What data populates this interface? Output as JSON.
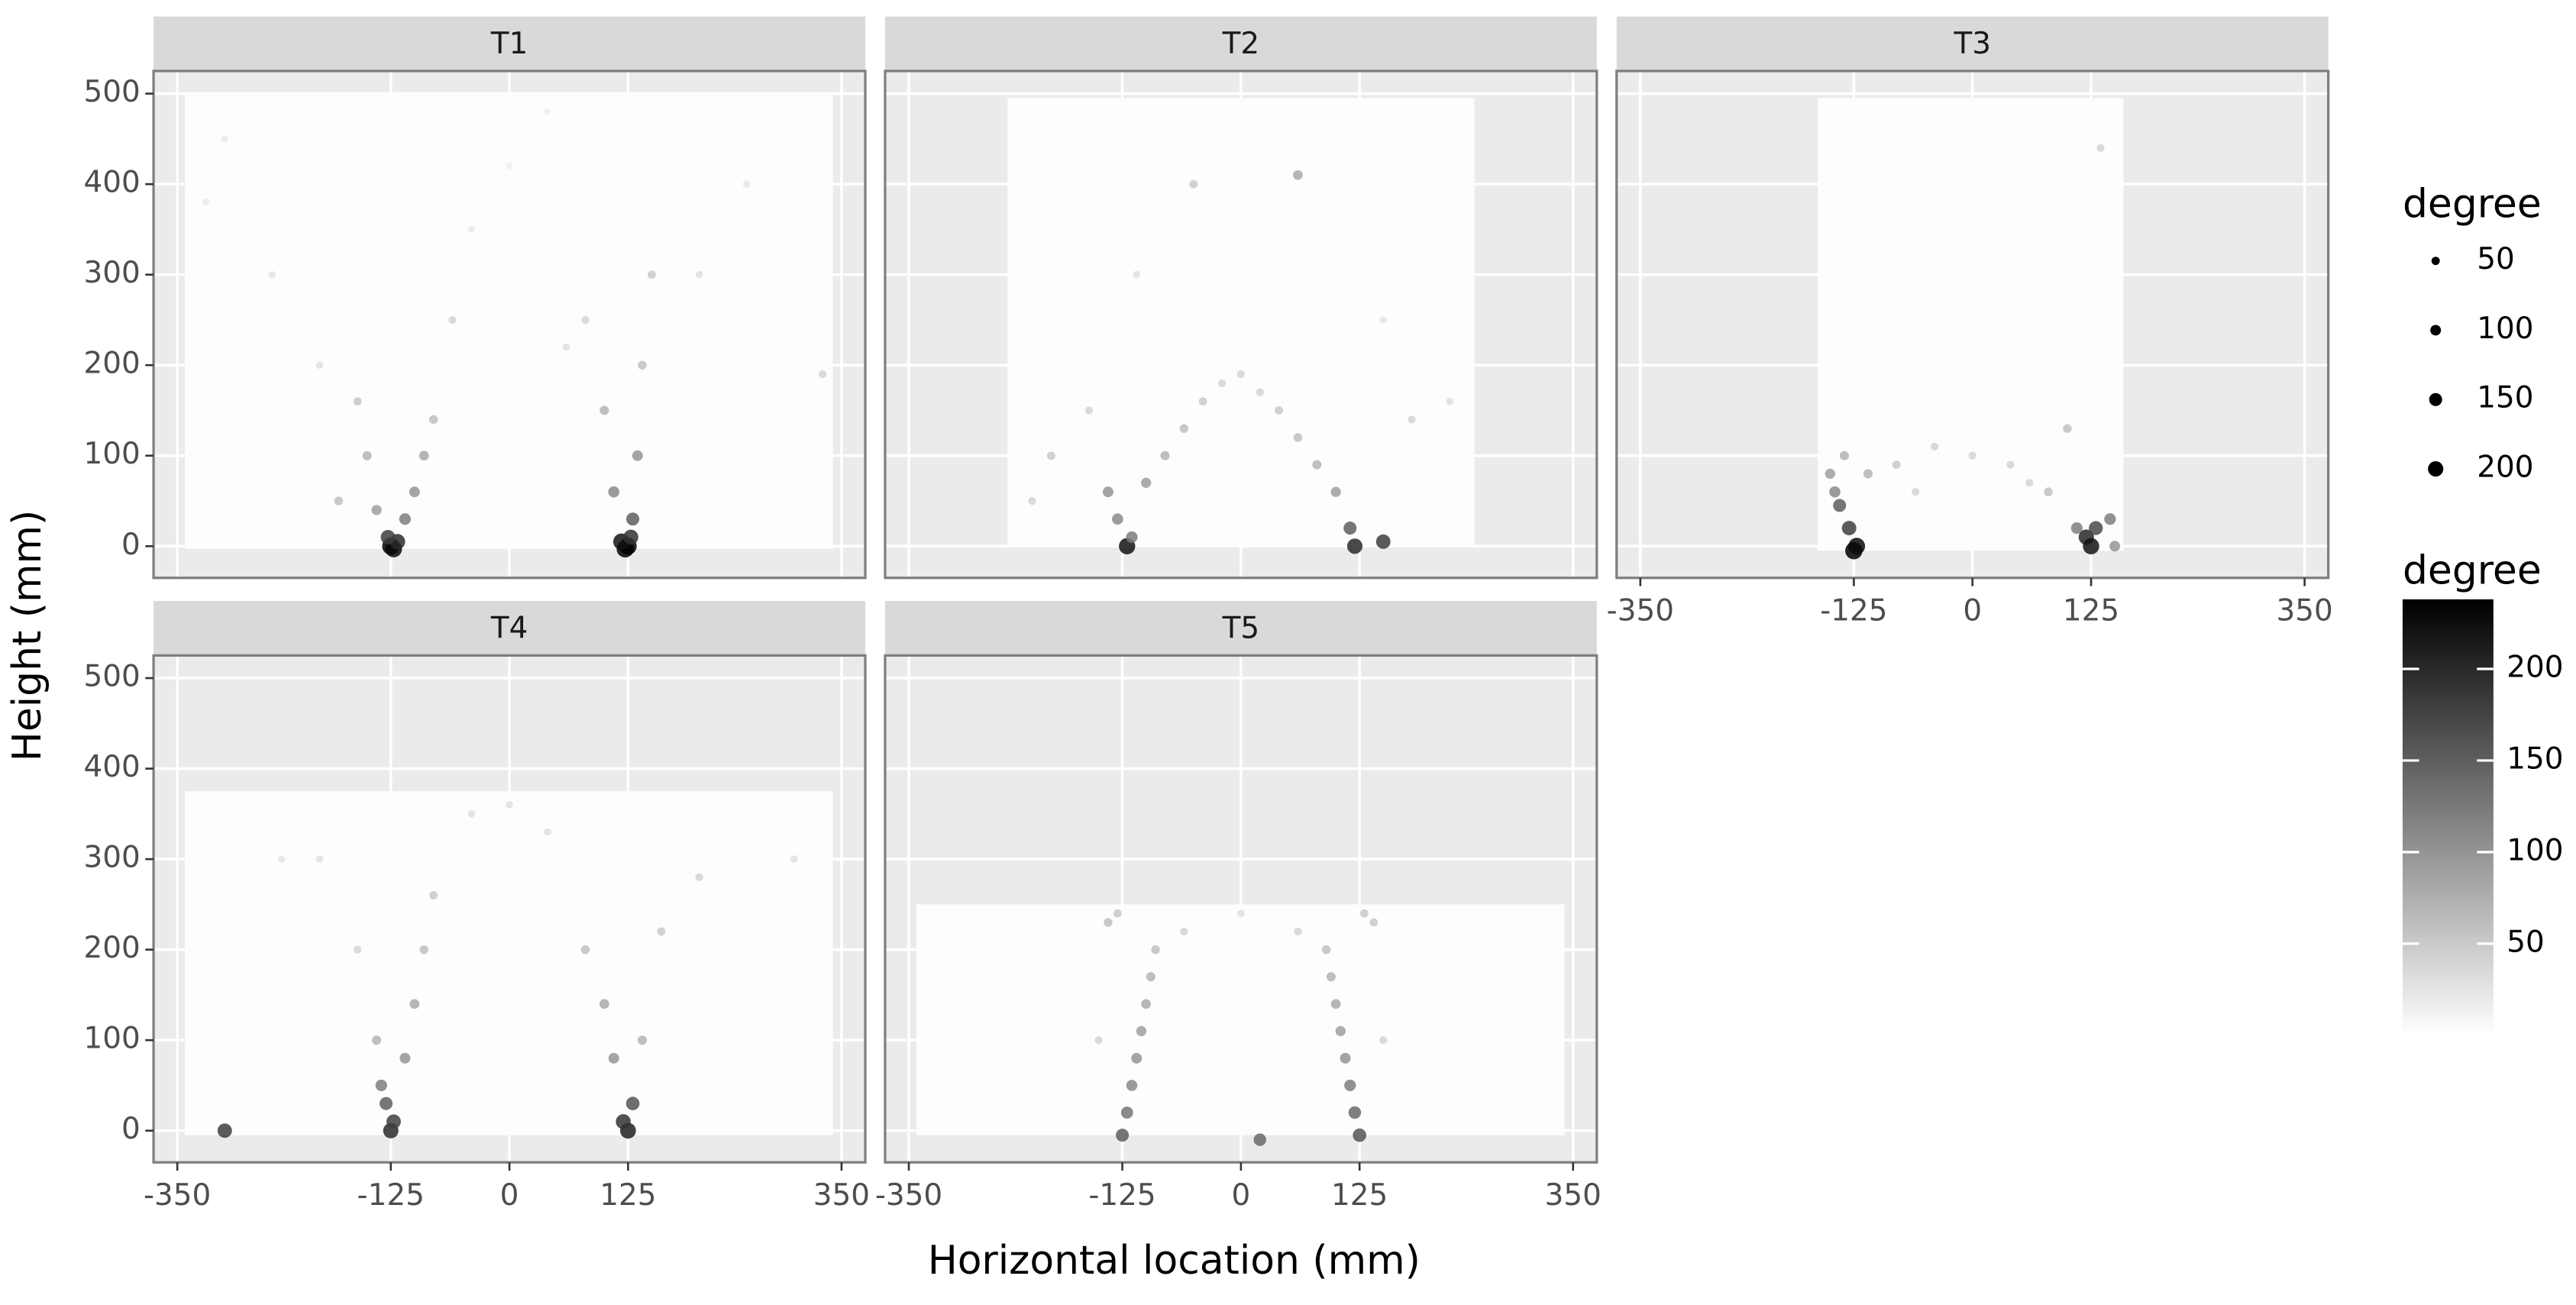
{
  "chart_data": {
    "type": "scatter",
    "xlabel": "Horizontal location (mm)",
    "ylabel": "Height (mm)",
    "xlim": [
      -375,
      375
    ],
    "ylim": [
      -35,
      525
    ],
    "xticks": [
      -350,
      -125,
      0,
      125,
      350
    ],
    "yticks": [
      0,
      100,
      200,
      300,
      400,
      500
    ],
    "grid": true,
    "size_legend": {
      "title": "degree",
      "values": [
        50,
        100,
        150,
        200
      ]
    },
    "colorbar": {
      "title": "degree",
      "lim": [
        0,
        238
      ],
      "ticks": [
        50,
        100,
        150,
        200
      ]
    },
    "panels": [
      {
        "title": "T1",
        "extent": {
          "xlim": [
            -342,
            341
          ],
          "ylim": [
            -3,
            500
          ]
        },
        "x": [
          -125,
          -122,
          -118,
          -128,
          -110,
          -100,
          -90,
          -80,
          -140,
          -150,
          -160,
          -60,
          -200,
          -250,
          -300,
          125,
          122,
          118,
          128,
          130,
          110,
          135,
          140,
          150,
          100,
          80,
          200,
          250,
          330,
          -40,
          0,
          40,
          -320,
          60,
          -180
        ],
        "y": [
          0,
          -3,
          5,
          10,
          30,
          60,
          100,
          140,
          40,
          100,
          160,
          250,
          200,
          300,
          450,
          0,
          -3,
          5,
          10,
          30,
          60,
          100,
          200,
          300,
          150,
          250,
          300,
          400,
          190,
          350,
          420,
          480,
          380,
          220,
          50
        ],
        "degree": [
          240,
          230,
          200,
          180,
          120,
          100,
          80,
          60,
          90,
          70,
          50,
          40,
          30,
          25,
          20,
          240,
          238,
          220,
          190,
          150,
          110,
          100,
          60,
          50,
          70,
          40,
          30,
          25,
          40,
          20,
          15,
          15,
          20,
          30,
          60
        ]
      },
      {
        "title": "T2",
        "extent": {
          "xlim": [
            -246,
            246
          ],
          "ylim": [
            0,
            495
          ]
        },
        "x": [
          -120,
          -115,
          -130,
          -140,
          -100,
          -80,
          -60,
          -40,
          -20,
          0,
          20,
          40,
          60,
          80,
          100,
          115,
          120,
          150,
          -160,
          -200,
          -220,
          180,
          220,
          -50,
          60,
          -110,
          150
        ],
        "y": [
          0,
          10,
          30,
          60,
          70,
          100,
          130,
          160,
          180,
          190,
          170,
          150,
          120,
          90,
          60,
          20,
          0,
          5,
          150,
          100,
          50,
          140,
          160,
          400,
          410,
          300,
          250
        ],
        "degree": [
          220,
          120,
          110,
          100,
          90,
          70,
          60,
          50,
          40,
          40,
          40,
          50,
          60,
          70,
          90,
          150,
          200,
          180,
          40,
          50,
          40,
          40,
          30,
          50,
          80,
          30,
          25
        ]
      },
      {
        "title": "T3",
        "extent": {
          "xlim": [
            -163,
            159
          ],
          "ylim": [
            -5,
            495
          ]
        },
        "x": [
          -125,
          -122,
          -130,
          -140,
          -145,
          -135,
          -110,
          -80,
          -40,
          0,
          40,
          80,
          110,
          120,
          125,
          130,
          145,
          150,
          -150,
          135,
          -60,
          60,
          100
        ],
        "y": [
          -5,
          0,
          20,
          45,
          60,
          100,
          80,
          90,
          110,
          100,
          90,
          60,
          20,
          10,
          0,
          20,
          30,
          0,
          80,
          440,
          60,
          70,
          130
        ],
        "degree": [
          240,
          230,
          180,
          150,
          110,
          70,
          70,
          50,
          40,
          40,
          40,
          60,
          120,
          200,
          220,
          170,
          120,
          100,
          90,
          40,
          40,
          40,
          60
        ]
      },
      {
        "title": "T4",
        "extent": {
          "xlim": [
            -342,
            341
          ],
          "ylim": [
            -5,
            375
          ]
        },
        "x": [
          -125,
          -122,
          -130,
          -135,
          -110,
          -100,
          -90,
          -80,
          -140,
          -160,
          -200,
          -300,
          125,
          120,
          130,
          110,
          100,
          80,
          140,
          160,
          200,
          300,
          -40,
          0,
          40,
          -240
        ],
        "y": [
          0,
          10,
          30,
          50,
          80,
          140,
          200,
          260,
          100,
          200,
          300,
          0,
          0,
          10,
          30,
          80,
          140,
          200,
          100,
          220,
          280,
          300,
          350,
          360,
          330,
          300
        ],
        "degree": [
          200,
          180,
          150,
          120,
          100,
          80,
          60,
          50,
          70,
          40,
          30,
          180,
          210,
          190,
          160,
          100,
          80,
          60,
          70,
          50,
          40,
          30,
          30,
          30,
          30,
          25
        ]
      },
      {
        "title": "T5",
        "extent": {
          "xlim": [
            -342,
            341
          ],
          "ylim": [
            -5,
            250
          ]
        },
        "x": [
          -125,
          -120,
          -115,
          -110,
          -105,
          -100,
          -95,
          -90,
          -140,
          -130,
          125,
          120,
          115,
          110,
          105,
          100,
          95,
          90,
          140,
          130,
          20,
          -60,
          60,
          0,
          -150,
          150
        ],
        "y": [
          -5,
          20,
          50,
          80,
          110,
          140,
          170,
          200,
          230,
          240,
          -5,
          20,
          50,
          80,
          110,
          140,
          170,
          200,
          230,
          240,
          -10,
          220,
          220,
          240,
          100,
          100
        ],
        "degree": [
          150,
          130,
          110,
          100,
          90,
          80,
          70,
          60,
          60,
          50,
          160,
          140,
          120,
          100,
          90,
          80,
          70,
          60,
          50,
          50,
          140,
          40,
          40,
          30,
          40,
          40
        ]
      }
    ]
  }
}
